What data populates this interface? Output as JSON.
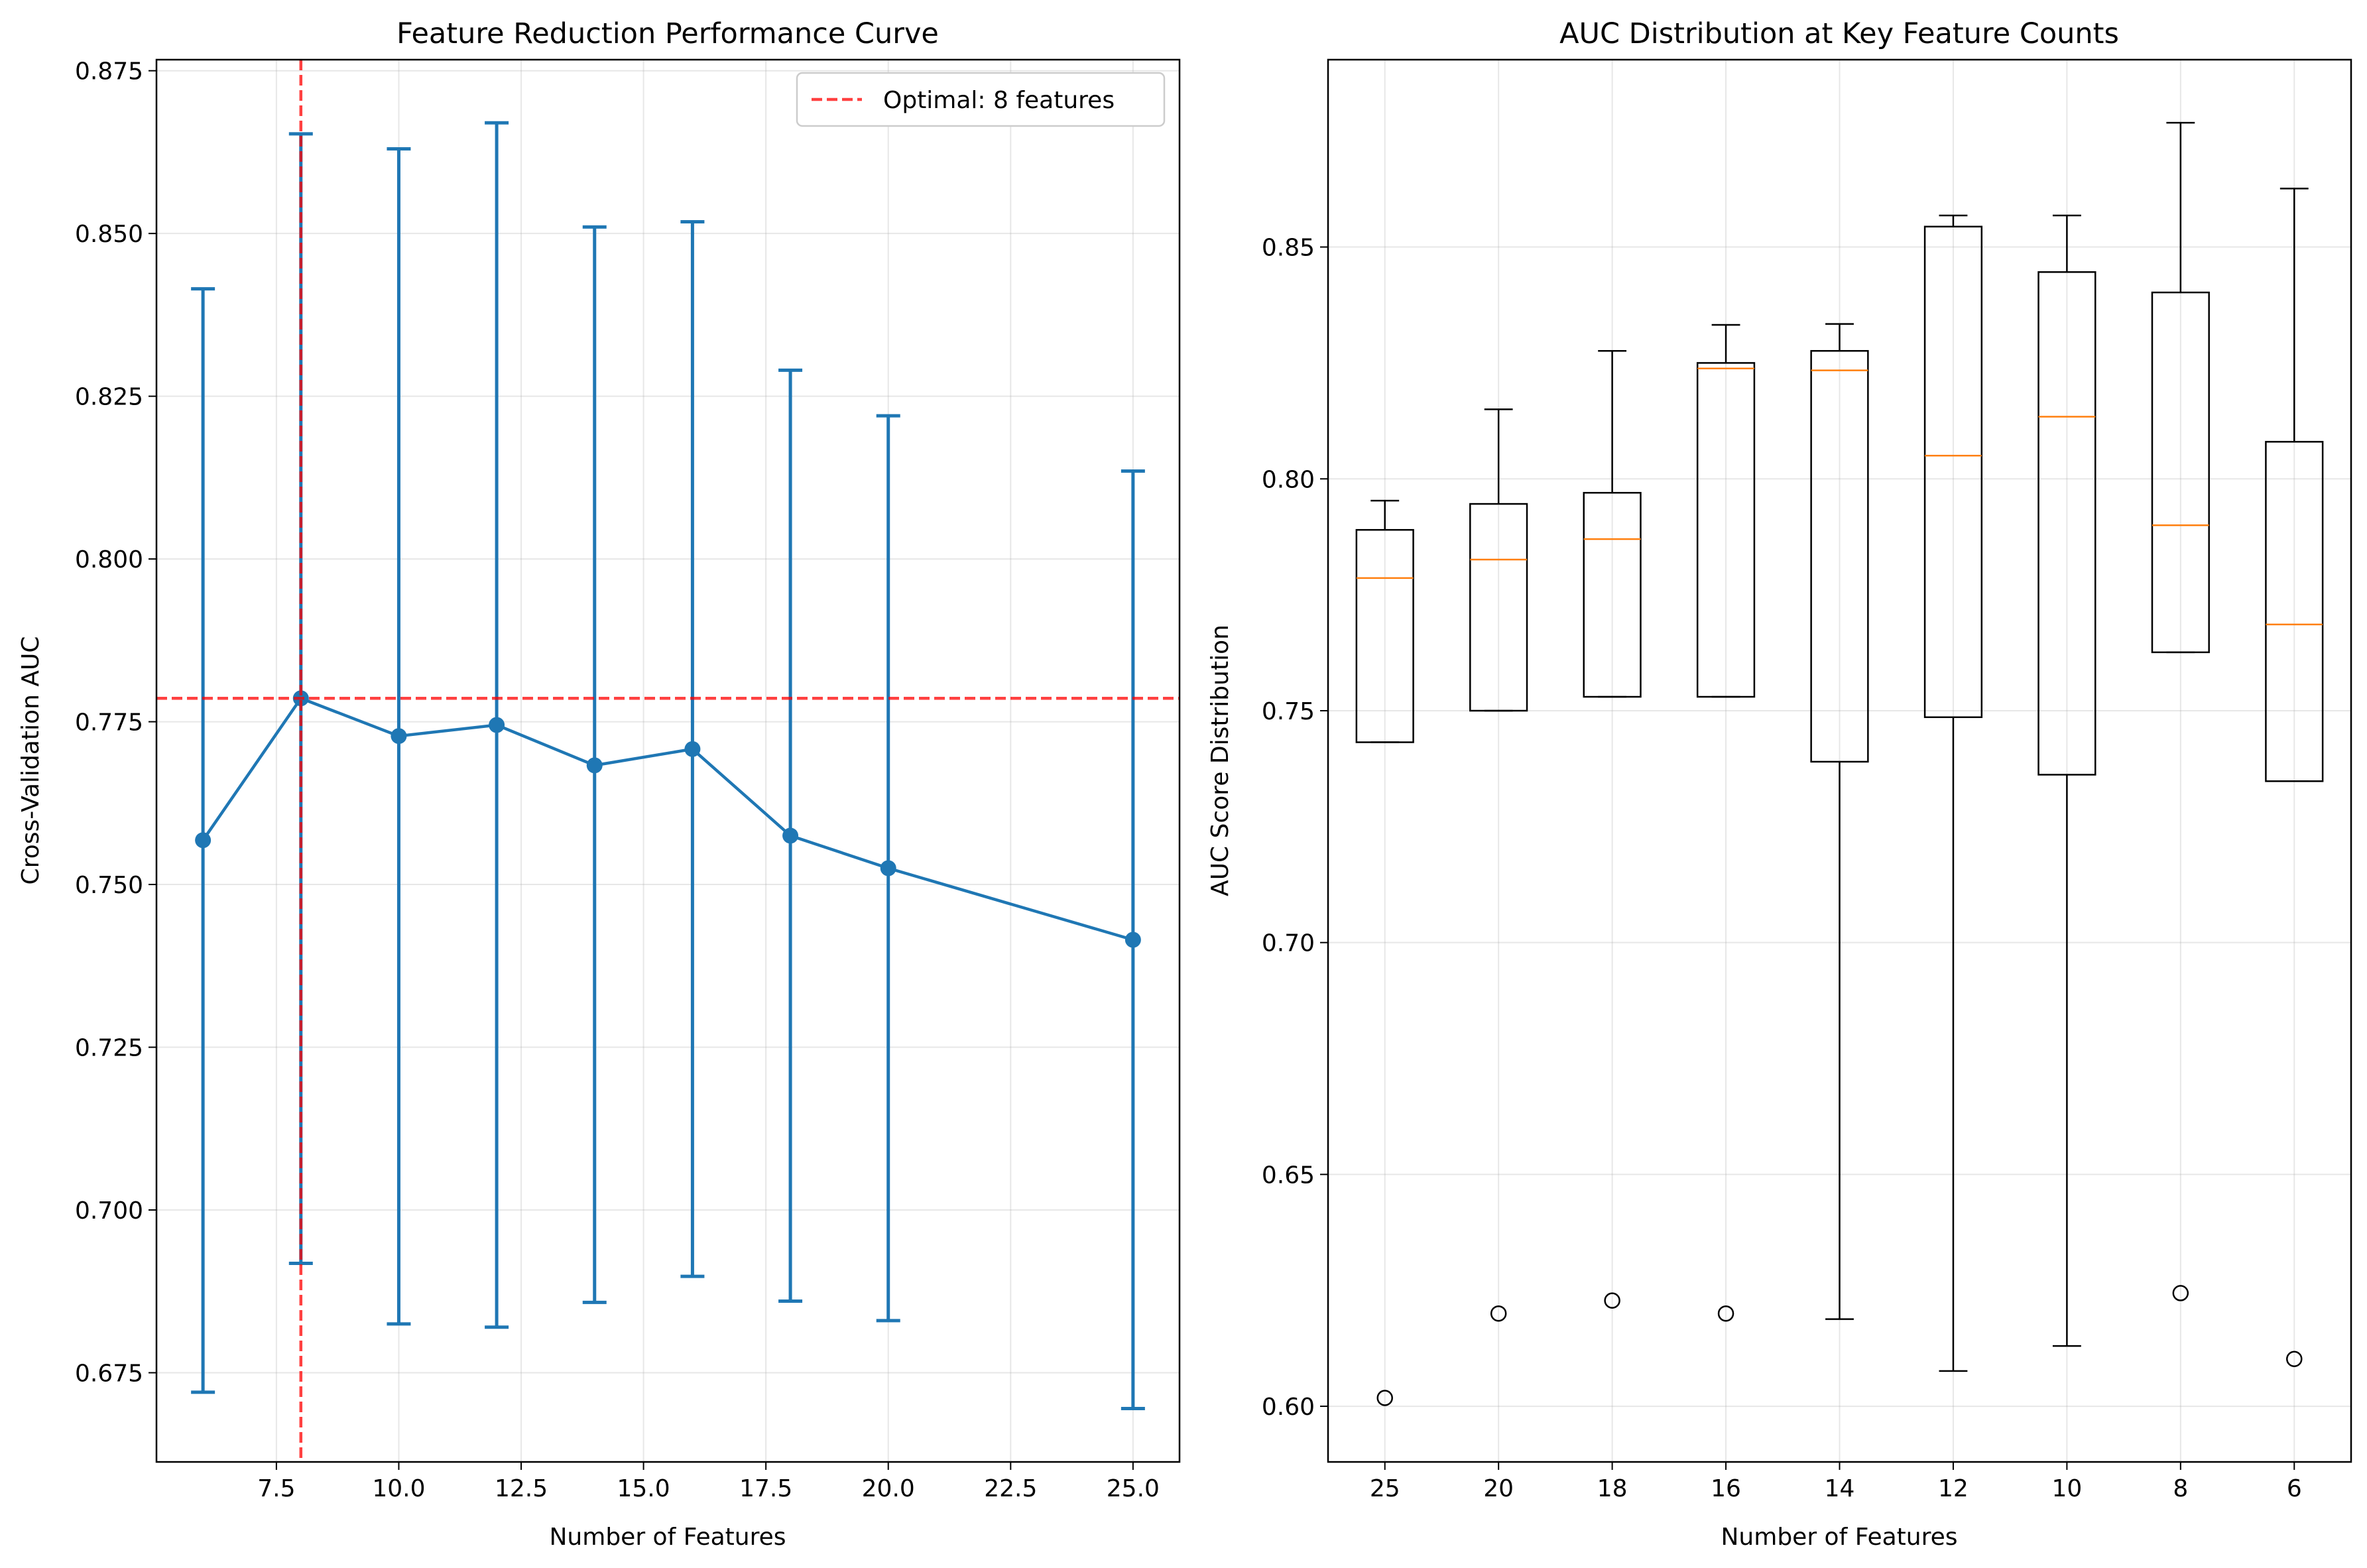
{
  "chart_data": [
    {
      "type": "line",
      "title": "Feature Reduction Performance Curve",
      "xlabel": "Number of Features",
      "ylabel": "Cross-Validation AUC",
      "xlim": [
        5.05,
        25.95
      ],
      "ylim": [
        0.6613,
        0.8767
      ],
      "xticks": [
        7.5,
        10.0,
        12.5,
        15.0,
        17.5,
        20.0,
        22.5,
        25.0
      ],
      "xtick_labels": [
        "7.5",
        "10.0",
        "12.5",
        "15.0",
        "17.5",
        "20.0",
        "22.5",
        "25.0"
      ],
      "yticks": [
        0.675,
        0.7,
        0.725,
        0.75,
        0.775,
        0.8,
        0.825,
        0.85,
        0.875
      ],
      "ytick_labels": [
        "0.675",
        "0.700",
        "0.725",
        "0.750",
        "0.775",
        "0.800",
        "0.825",
        "0.850",
        "0.875"
      ],
      "grid": true,
      "legend": "top-right",
      "series": [
        {
          "x": [
            6,
            8,
            10,
            12,
            14,
            16,
            18,
            20,
            25
          ],
          "y": [
            0.7568,
            0.7786,
            0.7728,
            0.7745,
            0.7683,
            0.7708,
            0.7575,
            0.7525,
            0.7415
          ],
          "err_low": [
            0.672,
            0.6918,
            0.6825,
            0.682,
            0.6858,
            0.6898,
            0.686,
            0.683,
            0.6695
          ],
          "err_high": [
            0.8415,
            0.8653,
            0.863,
            0.867,
            0.851,
            0.8518,
            0.829,
            0.822,
            0.8135
          ],
          "color": "#1f77b4"
        }
      ],
      "reference_lines": [
        {
          "orientation": "vertical",
          "x": 8,
          "label": "Optimal: 8 features",
          "color": "#ff0000"
        },
        {
          "orientation": "horizontal",
          "y": 0.7786,
          "color": "#ff0000"
        }
      ],
      "legend_entries": [
        "Optimal: 8 features"
      ]
    },
    {
      "type": "box",
      "title": "AUC Distribution at Key Feature Counts",
      "xlabel": "Number of Features",
      "ylabel": "AUC Score Distribution",
      "categories": [
        "25",
        "20",
        "18",
        "16",
        "14",
        "12",
        "10",
        "8",
        "6"
      ],
      "ylim": [
        0.588,
        0.8904
      ],
      "yticks": [
        0.6,
        0.65,
        0.7,
        0.75,
        0.8,
        0.85
      ],
      "ytick_labels": [
        "0.60",
        "0.65",
        "0.70",
        "0.75",
        "0.80",
        "0.85"
      ],
      "grid": true,
      "boxes": [
        {
          "whisker_low": 0.7432,
          "q1": 0.7432,
          "median": 0.7786,
          "q3": 0.789,
          "whisker_high": 0.7953,
          "outliers": [
            0.6018
          ]
        },
        {
          "whisker_low": 0.75,
          "q1": 0.75,
          "median": 0.7826,
          "q3": 0.7946,
          "whisker_high": 0.815,
          "outliers": [
            0.62
          ]
        },
        {
          "whisker_low": 0.753,
          "q1": 0.753,
          "median": 0.787,
          "q3": 0.797,
          "whisker_high": 0.8276,
          "outliers": [
            0.6228
          ]
        },
        {
          "whisker_low": 0.753,
          "q1": 0.753,
          "median": 0.8238,
          "q3": 0.825,
          "whisker_high": 0.8332,
          "outliers": [
            0.62
          ]
        },
        {
          "whisker_low": 0.6188,
          "q1": 0.739,
          "median": 0.8234,
          "q3": 0.8276,
          "whisker_high": 0.8334,
          "outliers": []
        },
        {
          "whisker_low": 0.6076,
          "q1": 0.7486,
          "median": 0.805,
          "q3": 0.8544,
          "whisker_high": 0.8568,
          "outliers": []
        },
        {
          "whisker_low": 0.613,
          "q1": 0.7362,
          "median": 0.8134,
          "q3": 0.8446,
          "whisker_high": 0.8568,
          "outliers": []
        },
        {
          "whisker_low": 0.7626,
          "q1": 0.7626,
          "median": 0.79,
          "q3": 0.8402,
          "whisker_high": 0.8768,
          "outliers": [
            0.6244
          ]
        },
        {
          "whisker_low": 0.7348,
          "q1": 0.7348,
          "median": 0.7686,
          "q3": 0.808,
          "whisker_high": 0.8626,
          "outliers": [
            0.6102
          ]
        }
      ],
      "box_color": "#000000",
      "median_color": "#ff7f0e"
    }
  ]
}
